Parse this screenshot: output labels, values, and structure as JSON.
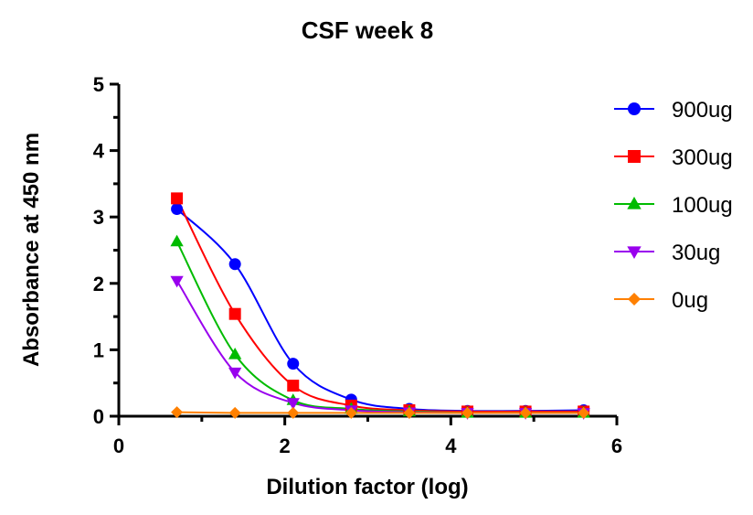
{
  "chart_data": {
    "type": "line",
    "title": "CSF week 8",
    "xlabel": "Dilution factor (log)",
    "ylabel": "Absorbance at 450 nm",
    "xlim": [
      0,
      6
    ],
    "ylim": [
      0,
      5
    ],
    "xticks": [
      "0",
      "2",
      "4",
      "6"
    ],
    "yticks": [
      "0",
      "1",
      "2",
      "3",
      "4",
      "5"
    ],
    "grid": false,
    "legend_position": "right",
    "series": [
      {
        "name": "900ug",
        "color": "#0000ff",
        "marker": "circle",
        "x": [
          0.7,
          1.4,
          2.1,
          2.8,
          3.5,
          4.2,
          4.9,
          5.6
        ],
        "y": [
          3.12,
          2.29,
          0.79,
          0.25,
          0.11,
          0.08,
          0.08,
          0.09
        ]
      },
      {
        "name": "300ug",
        "color": "#ff0000",
        "marker": "square",
        "x": [
          0.7,
          1.4,
          2.1,
          2.8,
          3.5,
          4.2,
          4.9,
          5.6
        ],
        "y": [
          3.28,
          1.54,
          0.46,
          0.16,
          0.09,
          0.07,
          0.07,
          0.07
        ]
      },
      {
        "name": "100ug",
        "color": "#00bb00",
        "marker": "triangle-up",
        "x": [
          0.7,
          1.4,
          2.1,
          2.8,
          3.5,
          4.2,
          4.9,
          5.6
        ],
        "y": [
          2.63,
          0.93,
          0.24,
          0.11,
          0.07,
          0.05,
          0.05,
          0.05
        ]
      },
      {
        "name": "30ug",
        "color": "#9900ee",
        "marker": "triangle-down",
        "x": [
          0.7,
          1.4,
          2.1,
          2.8,
          3.5,
          4.2,
          4.9,
          5.6
        ],
        "y": [
          2.04,
          0.66,
          0.2,
          0.09,
          0.06,
          0.05,
          0.05,
          0.05
        ]
      },
      {
        "name": "0ug",
        "color": "#ff8000",
        "marker": "diamond",
        "x": [
          0.7,
          1.4,
          2.1,
          2.8,
          3.5,
          4.2,
          4.9,
          5.6
        ],
        "y": [
          0.06,
          0.05,
          0.05,
          0.05,
          0.05,
          0.05,
          0.05,
          0.05
        ]
      }
    ]
  }
}
